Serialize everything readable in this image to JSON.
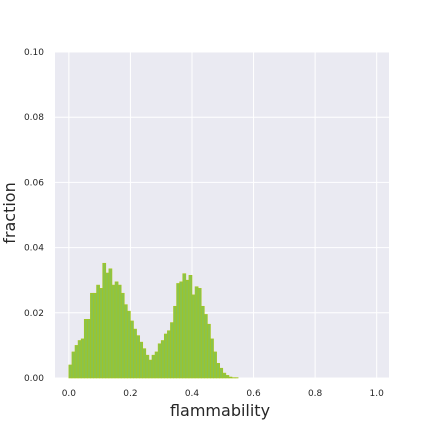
{
  "chart_data": {
    "type": "bar",
    "title": "",
    "xlabel": "flammability",
    "ylabel": "fraction",
    "xlim": [
      -0.045,
      1.04
    ],
    "ylim": [
      0.0,
      0.1
    ],
    "xticks": [
      0.0,
      0.2,
      0.4,
      0.6,
      0.8,
      1.0
    ],
    "xtick_labels": [
      "0.0",
      "0.2",
      "0.4",
      "0.6",
      "0.8",
      "1.0"
    ],
    "yticks": [
      0.0,
      0.02,
      0.04,
      0.06,
      0.08,
      0.1
    ],
    "ytick_labels": [
      "0.00",
      "0.02",
      "0.04",
      "0.06",
      "0.08",
      "0.10"
    ],
    "grid": true,
    "bin_width": 0.01,
    "bar_color": "#8bc34a",
    "bar_edge_color": "#a6c61b",
    "background_color": "#eaeaf2",
    "grid_color": "#ffffff",
    "bins_start": [
      0.0,
      0.01,
      0.02,
      0.03,
      0.04,
      0.05,
      0.06,
      0.07,
      0.08,
      0.09,
      0.1,
      0.11,
      0.12,
      0.13,
      0.14,
      0.15,
      0.16,
      0.17,
      0.18,
      0.19,
      0.2,
      0.21,
      0.22,
      0.23,
      0.24,
      0.25,
      0.26,
      0.27,
      0.28,
      0.29,
      0.3,
      0.31,
      0.32,
      0.33,
      0.34,
      0.35,
      0.36,
      0.37,
      0.38,
      0.39,
      0.4,
      0.41,
      0.42,
      0.43,
      0.44,
      0.45,
      0.46,
      0.47,
      0.48,
      0.49,
      0.5,
      0.51,
      0.52,
      0.53,
      0.54,
      0.55,
      0.56,
      0.57,
      0.58,
      0.59
    ],
    "values": [
      0.004,
      0.008,
      0.01,
      0.0115,
      0.012,
      0.018,
      0.018,
      0.026,
      0.026,
      0.0285,
      0.0275,
      0.0352,
      0.0322,
      0.0335,
      0.0285,
      0.0295,
      0.0285,
      0.026,
      0.0225,
      0.0205,
      0.0175,
      0.015,
      0.013,
      0.011,
      0.009,
      0.007,
      0.0055,
      0.007,
      0.008,
      0.0105,
      0.0115,
      0.0135,
      0.0145,
      0.017,
      0.022,
      0.029,
      0.0295,
      0.032,
      0.03,
      0.0315,
      0.0255,
      0.028,
      0.0275,
      0.022,
      0.0195,
      0.0165,
      0.012,
      0.008,
      0.0045,
      0.003,
      0.0015,
      0.0008,
      0.0003,
      0.0001,
      0.0001,
      0.0,
      0.0,
      0.0,
      0.0,
      0.0
    ]
  }
}
